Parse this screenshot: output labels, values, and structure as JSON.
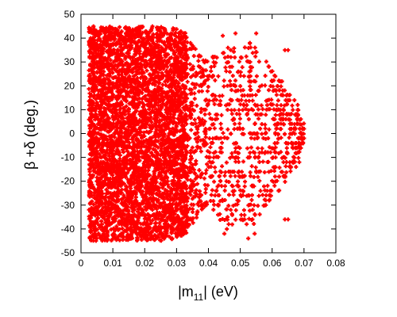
{
  "chart_data": {
    "type": "scatter",
    "title": "",
    "xlabel_parts": {
      "pre": "|m",
      "sub": "11",
      "post": "| (eV)"
    },
    "ylabel": "β +δ (deg.)",
    "xlim": [
      0,
      0.08
    ],
    "ylim": [
      -50,
      50
    ],
    "xticks": [
      0,
      0.01,
      0.02,
      0.03,
      0.04,
      0.05,
      0.06,
      0.07,
      0.08
    ],
    "yticks": [
      -50,
      -40,
      -30,
      -20,
      -10,
      0,
      10,
      20,
      30,
      40,
      50
    ],
    "xtick_labels": [
      "0",
      "0.01",
      "0.02",
      "0.03",
      "0.04",
      "0.05",
      "0.06",
      "0.07",
      "0.08"
    ],
    "ytick_labels": [
      "-50",
      "-40",
      "-30",
      "-20",
      "-10",
      "0",
      "10",
      "20",
      "30",
      "40",
      "50"
    ],
    "grid": false,
    "legend": "none",
    "marker": "plus",
    "point_color": "#ff0000",
    "envelope": [
      {
        "x": 0.002,
        "ylo": -45,
        "yhi": 45
      },
      {
        "x": 0.005,
        "ylo": -45,
        "yhi": 45
      },
      {
        "x": 0.01,
        "ylo": -45,
        "yhi": 45
      },
      {
        "x": 0.015,
        "ylo": -45,
        "yhi": 45
      },
      {
        "x": 0.02,
        "ylo": -45,
        "yhi": 45
      },
      {
        "x": 0.025,
        "ylo": -45,
        "yhi": 45
      },
      {
        "x": 0.03,
        "ylo": -44,
        "yhi": 44
      },
      {
        "x": 0.033,
        "ylo": -42,
        "yhi": 42
      },
      {
        "x": 0.035,
        "ylo": -38,
        "yhi": 38
      },
      {
        "x": 0.038,
        "ylo": -32,
        "yhi": 32
      },
      {
        "x": 0.04,
        "ylo": -30,
        "yhi": 30
      },
      {
        "x": 0.043,
        "ylo": -36,
        "yhi": 36
      },
      {
        "x": 0.046,
        "ylo": -40,
        "yhi": 40
      },
      {
        "x": 0.05,
        "ylo": -36,
        "yhi": 36
      },
      {
        "x": 0.054,
        "ylo": -40,
        "yhi": 40
      },
      {
        "x": 0.058,
        "ylo": -30,
        "yhi": 30
      },
      {
        "x": 0.062,
        "ylo": -24,
        "yhi": 24
      },
      {
        "x": 0.065,
        "ylo": -18,
        "yhi": 18
      },
      {
        "x": 0.068,
        "ylo": -10,
        "yhi": 10
      },
      {
        "x": 0.07,
        "ylo": -3,
        "yhi": 3
      }
    ],
    "outlier_points": [
      {
        "x": 0.0445,
        "y": 41
      },
      {
        "x": 0.0485,
        "y": 42
      },
      {
        "x": 0.055,
        "y": 42
      },
      {
        "x": 0.045,
        "y": -42
      },
      {
        "x": 0.0545,
        "y": -42
      },
      {
        "x": 0.0525,
        "y": -44
      },
      {
        "x": 0.064,
        "y": 35
      },
      {
        "x": 0.065,
        "y": 35
      },
      {
        "x": 0.064,
        "y": -36
      },
      {
        "x": 0.065,
        "y": -36
      },
      {
        "x": 0.067,
        "y": 14
      },
      {
        "x": 0.068,
        "y": 12
      },
      {
        "x": 0.0675,
        "y": -14
      },
      {
        "x": 0.0685,
        "y": -12
      },
      {
        "x": 0.07,
        "y": 2
      },
      {
        "x": 0.07,
        "y": -2
      },
      {
        "x": 0.069,
        "y": 6
      },
      {
        "x": 0.069,
        "y": -6
      },
      {
        "x": 0.061,
        "y": 24
      },
      {
        "x": 0.062,
        "y": -24
      },
      {
        "x": 0.059,
        "y": 28
      },
      {
        "x": 0.058,
        "y": -28
      },
      {
        "x": 0.053,
        "y": 38
      },
      {
        "x": 0.052,
        "y": -38
      },
      {
        "x": 0.047,
        "y": 35
      },
      {
        "x": 0.046,
        "y": -35
      }
    ]
  }
}
